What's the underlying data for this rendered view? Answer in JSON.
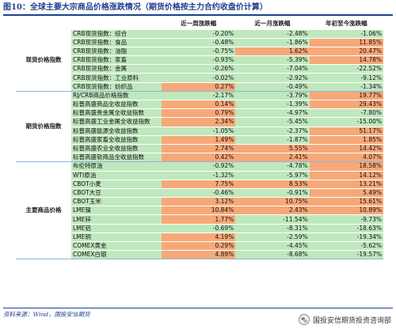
{
  "title": "图10：全球主要大宗商品价格涨跌情况（期货价格按主力合约收盘价计算）",
  "headers": [
    "",
    "",
    "近一周涨跌幅",
    "近一月涨跌幅",
    "年初至今涨跌幅"
  ],
  "colors": {
    "up": "#f7a878",
    "down": "#bfe8bd",
    "title": "#1f3f8f"
  },
  "sections": [
    {
      "group": "现货价格指数",
      "rows": [
        {
          "name": "CRB现货指数：综合",
          "w": "-0.20%",
          "m": "-2.48%",
          "y": "-1.06%"
        },
        {
          "name": "CRB现货指数：食品",
          "w": "-0.48%",
          "m": "-1.86%",
          "y": "11.85%"
        },
        {
          "name": "CRB现货指数：油脂",
          "w": "-0.75%",
          "m": "1.62%",
          "y": "20.47%"
        },
        {
          "name": "CRB现货指数：家畜",
          "w": "-0.93%",
          "m": "-5.39%",
          "y": "14.78%"
        },
        {
          "name": "CRB现货指数：金属",
          "w": "-0.26%",
          "m": "-7.04%",
          "y": "-22.52%"
        },
        {
          "name": "CRB现货指数：工业原料",
          "w": "-0.02%",
          "m": "-2.92%",
          "y": "-9.12%"
        },
        {
          "name": "CRB现货指数：纺织品",
          "w": "0.27%",
          "m": "-0.49%",
          "y": "-1.34%"
        }
      ]
    },
    {
      "group": "期货价格指数",
      "rows": [
        {
          "name": "RJ/CRB商品价格指数",
          "w": "-2.17%",
          "m": "-3.79%",
          "y": "19.77%"
        },
        {
          "name": "标普高盛商品全收益指数",
          "w": "0.14%",
          "m": "-1.39%",
          "y": "29.43%"
        },
        {
          "name": "标普高盛贵金属全收益指数",
          "w": "0.79%",
          "m": "-4.97%",
          "y": "-7.80%"
        },
        {
          "name": "标普高盛工业金属全收益指数",
          "w": "2.34%",
          "m": "-5.45%",
          "y": "-15.00%"
        },
        {
          "name": "标普高盛能源全收益指数",
          "w": "-1.05%",
          "m": "-2.37%",
          "y": "51.17%"
        },
        {
          "name": "标普高盛家畜全收益指数",
          "w": "1.49%",
          "m": "-1.87%",
          "y": "1.85%"
        },
        {
          "name": "标普高盛农业全收益指数",
          "w": "2.74%",
          "m": "5.55%",
          "y": "14.42%"
        },
        {
          "name": "标普高盛软商品全收益指数",
          "w": "0.42%",
          "m": "2.41%",
          "y": "4.07%"
        }
      ]
    },
    {
      "group": "主要商品价格",
      "rows": [
        {
          "name": "布伦特原油",
          "w": "-0.92%",
          "m": "-4.78%",
          "y": "18.58%"
        },
        {
          "name": "WTI原油",
          "w": "-1.32%",
          "m": "-5.97%",
          "y": "14.12%"
        },
        {
          "name": "CBOT小麦",
          "w": "7.75%",
          "m": "8.53%",
          "y": "13.21%"
        },
        {
          "name": "CBOT大豆",
          "w": "-0.46%",
          "m": "-0.91%",
          "y": "5.49%"
        },
        {
          "name": "CBOT玉米",
          "w": "3.12%",
          "m": "10.75%",
          "y": "15.61%"
        },
        {
          "name": "LME镍",
          "w": "10.84%",
          "m": "2.43%",
          "y": "10.89%"
        },
        {
          "name": "LME锌",
          "w": "1.77%",
          "m": "-11.54%",
          "y": "-9.73%"
        },
        {
          "name": "LME铝",
          "w": "-0.69%",
          "m": "-8.31%",
          "y": "-18.63%"
        },
        {
          "name": "LME铜",
          "w": "4.19%",
          "m": "-2.59%",
          "y": "-19.34%"
        },
        {
          "name": "COMEX黄金",
          "w": "0.29%",
          "m": "-4.45%",
          "y": "-5.62%"
        },
        {
          "name": "COMEX白银",
          "w": "4.89%",
          "m": "-8.68%",
          "y": "-19.57%"
        }
      ]
    }
  ],
  "source": "资料来源：Wind，国投安信期货",
  "watermark": "国投安信期货投资咨询部"
}
